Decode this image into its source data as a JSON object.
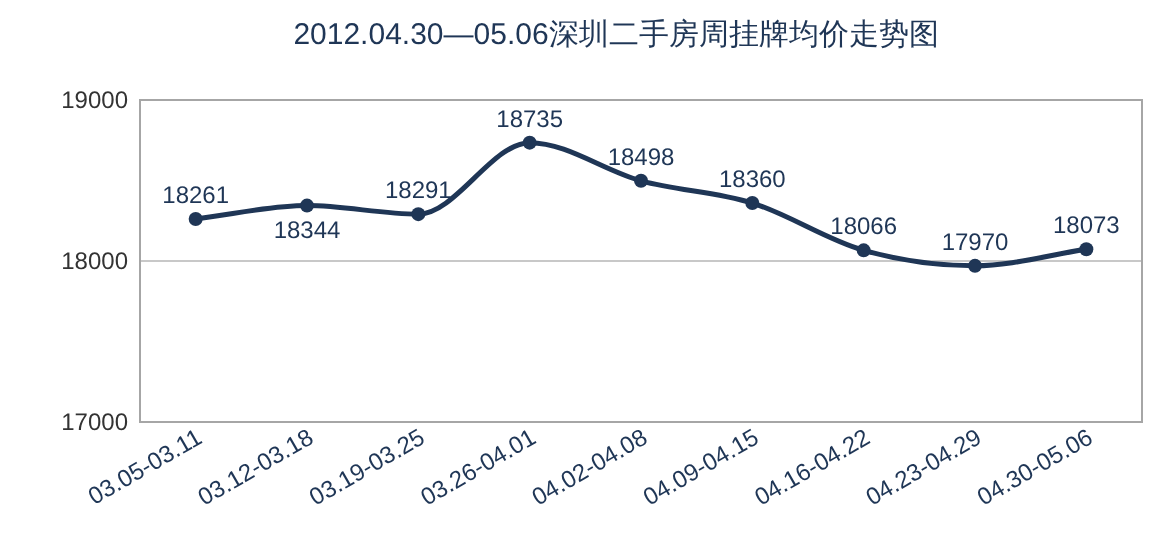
{
  "chart_data": {
    "type": "line",
    "title": "2012.04.30—05.06深圳二手房周挂牌均价走势图",
    "categories": [
      "03.05-03.11",
      "03.12-03.18",
      "03.19-03.25",
      "03.26-04.01",
      "04.02-04.08",
      "04.09-04.15",
      "04.16-04.22",
      "04.23-04.29",
      "04.30-05.06"
    ],
    "series": [
      {
        "color": "#1f3656",
        "values": [
          18261,
          18344,
          18291,
          18735,
          18498,
          18360,
          18066,
          17970,
          18073
        ]
      }
    ],
    "ylim": [
      17000,
      19000
    ],
    "yticks": [
      17000,
      18000,
      19000
    ],
    "grid": "y",
    "marker": "circle",
    "line_style": "solid",
    "data_labels": true
  }
}
